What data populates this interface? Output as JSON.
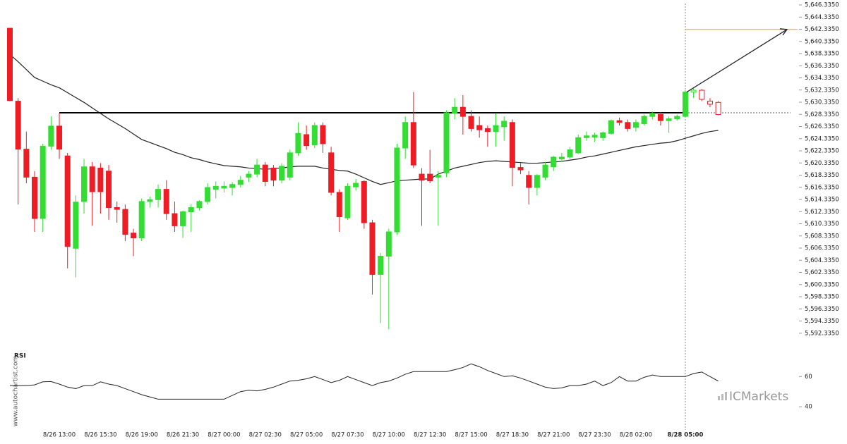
{
  "chart_data": [
    {
      "type": "candlestick",
      "categories": [
        null,
        null,
        null,
        null,
        null,
        null,
        "8/26 13:00",
        null,
        null,
        null,
        null,
        "8/26 15:30",
        null,
        null,
        null,
        null,
        "8/26 19:00",
        null,
        null,
        null,
        null,
        "8/26 21:30",
        null,
        null,
        null,
        null,
        "8/27 00:00",
        null,
        null,
        null,
        null,
        "8/27 02:30",
        null,
        null,
        null,
        null,
        "8/27 05:00",
        null,
        null,
        null,
        null,
        "8/27 07:30",
        null,
        null,
        null,
        null,
        "8/27 10:00",
        null,
        null,
        null,
        null,
        "8/27 12:30",
        null,
        null,
        null,
        null,
        "8/27 15:00",
        null,
        null,
        null,
        null,
        "8/27 18:30",
        null,
        null,
        null,
        null,
        "8/27 21:00",
        null,
        null,
        null,
        null,
        "8/27 23:30",
        null,
        null,
        null,
        null,
        "8/28 02:00",
        null,
        null,
        null,
        null,
        null,
        "8/28 05:00",
        null,
        null,
        null,
        null
      ],
      "open": [
        5642.5,
        5630.5,
        5622.6,
        5618,
        5611.2,
        5623.1,
        5626.4,
        5621.5,
        5606.3,
        5614,
        5619.7,
        5619.5,
        5619,
        5613,
        5612.7,
        5608.8,
        5608,
        5614,
        5614.3,
        5616,
        5612,
        5610,
        5612.3,
        5613,
        5614,
        5616,
        5616.2,
        5616.3,
        5616.8,
        5618,
        5618.5,
        5620,
        5619.5,
        5617.5,
        5618,
        5622,
        5625,
        5623.3,
        5626.5,
        5622,
        5615.5,
        5611.3,
        5616.4,
        5617.3,
        5610.5,
        5602,
        5605,
        5609,
        5622.8,
        5627,
        5618.5,
        5618.5,
        5618,
        5618.7,
        5628.5,
        5629.5,
        5628,
        5626.5,
        5626,
        5625.5,
        5626.3,
        5627,
        5619.6,
        5618.3,
        5616.3,
        5618,
        5619.7,
        5621,
        5621.3,
        5622,
        5624.5,
        5624.6,
        5624.5,
        5625.2,
        5627.3,
        5627,
        5626.2,
        5626.8,
        5628,
        5628.3,
        5627.3,
        5627.6,
        5628,
        5632,
        5632.3,
        5630.5,
        5630.3
      ],
      "high": [
        5642.5,
        5631,
        5625.5,
        5619,
        5623.5,
        5628,
        5628.5,
        5622,
        5615,
        5621,
        5620.5,
        5620.3,
        5620,
        5614,
        5613.5,
        5609.5,
        5614.5,
        5614.8,
        5616.8,
        5617.5,
        5614,
        5612.5,
        5613.5,
        5614.2,
        5617,
        5617.3,
        5617.3,
        5617.2,
        5618.2,
        5619,
        5621,
        5620.5,
        5620,
        5620.3,
        5622.5,
        5627,
        5626.5,
        5627,
        5627,
        5623,
        5616,
        5617,
        5617.7,
        5617.5,
        5611,
        5605.5,
        5609.5,
        5623.5,
        5628,
        5632,
        5619.5,
        5622.5,
        5619,
        5629,
        5631,
        5631.5,
        5629,
        5628,
        5626.5,
        5628.5,
        5628,
        5627.5,
        5620.3,
        5619,
        5618.5,
        5620.5,
        5621.5,
        5622,
        5623,
        5625,
        5625.5,
        5625.3,
        5625.5,
        5627.5,
        5627.8,
        5627.5,
        5627.5,
        5628.3,
        5628.8,
        5628.7,
        5628,
        5628.3,
        5632.3,
        5632.6,
        5632.5,
        5631,
        5630.5
      ],
      "low": [
        5630.5,
        5613.5,
        5617,
        5609,
        5609,
        5622.5,
        5621,
        5603,
        5601.5,
        5612,
        5610,
        5612,
        5611,
        5610.5,
        5607.5,
        5605,
        5607.5,
        5613,
        5613,
        5611,
        5609,
        5608,
        5609,
        5612.5,
        5613.5,
        5614.5,
        5615.5,
        5615,
        5616.3,
        5617.2,
        5618,
        5616.5,
        5616.5,
        5617,
        5617.5,
        5621.5,
        5622.5,
        5622.8,
        5622,
        5615,
        5609,
        5611,
        5615.8,
        5609.5,
        5598.7,
        5594,
        5593,
        5608.5,
        5621,
        5619.5,
        5610,
        5617,
        5610,
        5618,
        5627.5,
        5625,
        5625.5,
        5624.5,
        5623,
        5623,
        5624,
        5616.5,
        5618.5,
        5613.5,
        5615,
        5617.5,
        5619,
        5620.5,
        5621,
        5621.8,
        5624,
        5623.8,
        5624,
        5625,
        5626.5,
        5625.5,
        5625.5,
        5626.5,
        5627.5,
        5626.5,
        5625.3,
        5627.3,
        5627.8,
        5631,
        5630.5,
        5629.5,
        5628.2
      ],
      "close": [
        5630.6,
        5622.6,
        5618,
        5611.2,
        5623.1,
        5626.4,
        5622.6,
        5606.6,
        5613.9,
        5619.7,
        5615.6,
        5615.6,
        5613,
        5612.7,
        5608.6,
        5608,
        5614,
        5614.3,
        5616,
        5612,
        5610,
        5612.3,
        5613,
        5614,
        5616.3,
        5616.5,
        5616.5,
        5616.8,
        5617.5,
        5618.5,
        5620,
        5617.3,
        5617.5,
        5619.8,
        5622,
        5625.2,
        5623.2,
        5626.5,
        5623.5,
        5615.5,
        5611.5,
        5616.5,
        5617,
        5610.5,
        5602,
        5605,
        5609,
        5622.8,
        5627,
        5620,
        5617.5,
        5617.4,
        5618.3,
        5628.6,
        5629.5,
        5628,
        5626,
        5625.8,
        5625.5,
        5626.5,
        5627.2,
        5619.6,
        5619.2,
        5616.3,
        5618.3,
        5620,
        5621.3,
        5621.3,
        5622.5,
        5624.5,
        5624.8,
        5624.9,
        5625.3,
        5627.3,
        5627,
        5626,
        5627,
        5628,
        5628.5,
        5627.3,
        5627.6,
        5628,
        5632,
        5632.3,
        5630.8,
        5630,
        5628.3
      ],
      "up_color": "#33dd33",
      "down_color": "#ee1c25",
      "moving_average": {
        "color": "#222222",
        "values": [
          5638.2,
          5637,
          5635.7,
          5634.4,
          5633.8,
          5633.2,
          5632.7,
          5631.9,
          5631.1,
          5630.3,
          5629.4,
          5628.5,
          5627.6,
          5626.8,
          5626,
          5625.1,
          5624.2,
          5623.7,
          5623.2,
          5622.7,
          5622.1,
          5621.7,
          5621.2,
          5620.9,
          5620.5,
          5620.2,
          5619.9,
          5619.8,
          5619.7,
          5619.5,
          5619.4,
          5619.3,
          5619.4,
          5619.5,
          5619.7,
          5619.8,
          5619.8,
          5619.8,
          5619.5,
          5619.3,
          5619.1,
          5619,
          5618.5,
          5617.9,
          5617.3,
          5616.8,
          5617.1,
          5617.4,
          5617.5,
          5617.6,
          5617.7,
          5617.7,
          5618.5,
          5619,
          5619.5,
          5619.8,
          5620.1,
          5620.4,
          5620.6,
          5620.7,
          5620.6,
          5620.5,
          5620.4,
          5620.3,
          5620.3,
          5620.4,
          5620.5,
          5620.6,
          5620.8,
          5621,
          5621.3,
          5621.5,
          5621.8,
          5622.1,
          5622.4,
          5622.7,
          5623,
          5623.2,
          5623.4,
          5623.6,
          5623.7,
          5624,
          5624.4,
          5624.8,
          5625.2,
          5625.5,
          5625.7
        ]
      },
      "resistance": 5628.6,
      "target": 5642.3,
      "target_color": "#e0a040",
      "ylim": [
        5590.335,
        5646.335
      ],
      "yticks": [
        {
          "value": 5646.335,
          "label": "5,646.3350"
        },
        {
          "value": 5644.335,
          "label": "5,644.3350"
        },
        {
          "value": 5642.335,
          "label": "5,642.3350"
        },
        {
          "value": 5640.335,
          "label": "5,640.3350"
        },
        {
          "value": 5638.335,
          "label": "5,638.3350"
        },
        {
          "value": 5636.335,
          "label": "5,636.3350"
        },
        {
          "value": 5634.335,
          "label": "5,634.3350"
        },
        {
          "value": 5632.335,
          "label": "5,632.3350"
        },
        {
          "value": 5630.335,
          "label": "5,630.3350"
        },
        {
          "value": 5628.335,
          "label": "5,628.3350"
        },
        {
          "value": 5626.335,
          "label": "5,626.3350"
        },
        {
          "value": 5624.335,
          "label": "5,624.3350"
        },
        {
          "value": 5622.335,
          "label": "5,622.3350"
        },
        {
          "value": 5620.335,
          "label": "5,620.3350"
        },
        {
          "value": 5618.335,
          "label": "5,618.3350"
        },
        {
          "value": 5616.335,
          "label": "5,616.3350"
        },
        {
          "value": 5614.335,
          "label": "5,614.3350"
        },
        {
          "value": 5612.335,
          "label": "5,612.3350"
        },
        {
          "value": 5610.335,
          "label": "5,610.3350"
        },
        {
          "value": 5608.335,
          "label": "5,608.3350"
        },
        {
          "value": 5606.335,
          "label": "5,606.3350"
        },
        {
          "value": 5604.335,
          "label": "5,604.3350"
        },
        {
          "value": 5602.335,
          "label": "5,602.3350"
        },
        {
          "value": 5600.335,
          "label": "5,600.3350"
        },
        {
          "value": 5598.335,
          "label": "5,598.3350"
        },
        {
          "value": 5596.335,
          "label": "5,596.3350"
        },
        {
          "value": 5594.335,
          "label": "5,594.3350"
        },
        {
          "value": 5592.335,
          "label": "5,592.3350"
        }
      ]
    },
    {
      "type": "line",
      "title": "RSI",
      "color": "#222222",
      "values": [
        54,
        54,
        54,
        54.5,
        56.5,
        56.7,
        55,
        53,
        52,
        54,
        54,
        56.5,
        55,
        54,
        52,
        50,
        48,
        46.5,
        45,
        45,
        45,
        45,
        45,
        45,
        45,
        45,
        45,
        47.5,
        50,
        51,
        50.5,
        51.5,
        53,
        55,
        57,
        57.5,
        58.5,
        60,
        58,
        56,
        57.5,
        60,
        58,
        56,
        54,
        56,
        57,
        59,
        61.5,
        63.3,
        63.3,
        63.3,
        63.3,
        63.3,
        64.5,
        66,
        68.4,
        66.5,
        64,
        62,
        60,
        60.5,
        59,
        57,
        55,
        53,
        52,
        52.5,
        54,
        54,
        55,
        57,
        54,
        56,
        60,
        57,
        57,
        59.5,
        61,
        60,
        60,
        60,
        60,
        62,
        63,
        60,
        57
      ],
      "ylim": [
        27,
        76
      ],
      "yticks": [
        60,
        40
      ]
    }
  ],
  "branding": {
    "site": "www.autochartist.com",
    "logo": "ICMarkets"
  }
}
